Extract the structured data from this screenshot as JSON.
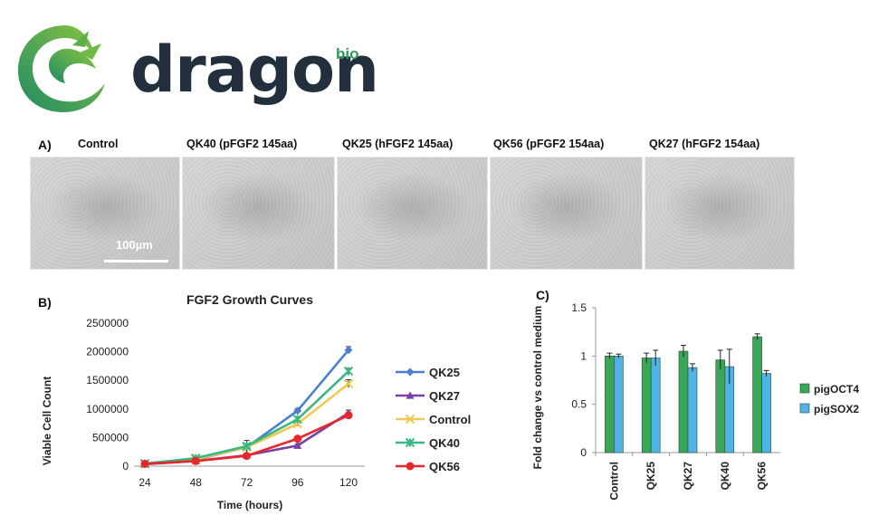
{
  "brand": {
    "name": "dragon",
    "suffix": "bio"
  },
  "panel_a": {
    "letter": "A)",
    "images": [
      {
        "label": "Control"
      },
      {
        "label": "QK40 (pFGF2 145aa)"
      },
      {
        "label": "QK25 (hFGF2 145aa)"
      },
      {
        "label": "QK56 (pFGF2 154aa)"
      },
      {
        "label": "QK27 (hFGF2 154aa)"
      }
    ],
    "scale_bar_label": "100µm"
  },
  "panel_b": {
    "letter": "B)"
  },
  "panel_c": {
    "letter": "C)"
  },
  "chart_data": [
    {
      "type": "line",
      "title": "FGF2 Growth Curves",
      "xlabel": "Time (hours)",
      "ylabel": "Viable Cell Count",
      "x": [
        24,
        48,
        72,
        96,
        120
      ],
      "ylim": [
        0,
        2500000
      ],
      "yticks": [
        0,
        500000,
        1000000,
        1500000,
        2000000,
        2500000
      ],
      "ytick_labels": [
        "0",
        "500000",
        "1000000",
        "1500000",
        "2000000",
        "2500000"
      ],
      "legend_position": "right",
      "grid": false,
      "series": [
        {
          "name": "QK25",
          "color": "#4a7fd4",
          "marker": "diamond",
          "values": [
            40000,
            110000,
            330000,
            970000,
            2030000
          ],
          "errors": [
            15000,
            20000,
            40000,
            40000,
            60000
          ]
        },
        {
          "name": "QK27",
          "color": "#7b3fa8",
          "marker": "triangle",
          "values": [
            35000,
            90000,
            190000,
            360000,
            930000
          ],
          "errors": [
            10000,
            15000,
            30000,
            30000,
            50000
          ]
        },
        {
          "name": "Control",
          "color": "#f0c850",
          "marker": "x",
          "values": [
            40000,
            120000,
            330000,
            740000,
            1440000
          ],
          "errors": [
            10000,
            20000,
            120000,
            40000,
            70000
          ]
        },
        {
          "name": "QK40",
          "color": "#3ab882",
          "marker": "star",
          "values": [
            45000,
            140000,
            350000,
            820000,
            1660000
          ],
          "errors": [
            10000,
            20000,
            40000,
            40000,
            50000
          ]
        },
        {
          "name": "QK56",
          "color": "#e8272a",
          "marker": "circle",
          "values": [
            40000,
            90000,
            180000,
            480000,
            890000
          ],
          "errors": [
            10000,
            15000,
            30000,
            40000,
            50000
          ]
        }
      ]
    },
    {
      "type": "bar",
      "title": "",
      "xlabel": "",
      "ylabel": "Fold change vs control medium",
      "categories": [
        "Control",
        "QK25",
        "QK27",
        "QK40",
        "QK56"
      ],
      "ylim": [
        0,
        1.5
      ],
      "yticks": [
        0,
        0.5,
        1,
        1.5
      ],
      "ytick_labels": [
        "0",
        "0.5",
        "1",
        "1.5"
      ],
      "legend_position": "right",
      "grid": false,
      "series": [
        {
          "name": "pigOCT4",
          "color": "#3aa657",
          "values": [
            1.0,
            0.98,
            1.05,
            0.96,
            1.2
          ],
          "errors": [
            0.03,
            0.05,
            0.06,
            0.1,
            0.03
          ]
        },
        {
          "name": "pigSOX2",
          "color": "#4fb3e6",
          "values": [
            1.0,
            0.98,
            0.88,
            0.89,
            0.82
          ],
          "errors": [
            0.02,
            0.08,
            0.04,
            0.18,
            0.03
          ]
        }
      ]
    }
  ]
}
